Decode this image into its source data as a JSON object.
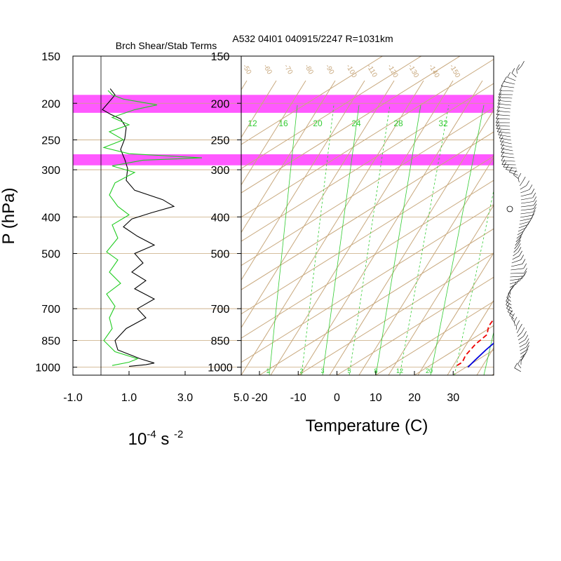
{
  "header": {
    "left_title": "Brch Shear/Stab Terms",
    "right_title": "A532 04I01 040915/2247 R=1031km"
  },
  "colors": {
    "isotherm": "#c8a87d",
    "mixing_ratio": "#33cc33",
    "highlight": "#ff00ff",
    "temperature": "#0000dd",
    "dewpoint": "#ee0000",
    "shear_term": "#000000",
    "stab_term": "#22cc22",
    "wind_barb": "#000000"
  },
  "chart_data": [
    {
      "type": "line",
      "name": "shear-stability-profile",
      "title": "Brch Shear/Stab Terms",
      "ylabel": "P (hPa)",
      "xlabel": "10^-4 s^-2",
      "xlabel_base": "10",
      "xlabel_exp1": "-4",
      "xlabel_mid": " s ",
      "xlabel_exp2": "-2",
      "x_ticks": [
        "-1.0",
        "1.0",
        "3.0",
        "5.0"
      ],
      "x_tick_values": [
        -1,
        1,
        3,
        5
      ],
      "xlim": [
        -1.0,
        5.0
      ],
      "y_scale": "log",
      "y_ticks": [
        "150",
        "200",
        "250",
        "300",
        "400",
        "500",
        "700",
        "850",
        "1000"
      ],
      "y_tick_values": [
        150,
        200,
        250,
        300,
        400,
        500,
        700,
        850,
        1000
      ],
      "ylim": [
        150,
        1050
      ],
      "highlight_bands": [
        [
          190,
          212
        ],
        [
          273,
          292
        ]
      ],
      "series": [
        {
          "color_key": "shear_term",
          "points": [
            [
              0.33,
              183
            ],
            [
              0.5,
              190
            ],
            [
              0.3,
              198
            ],
            [
              0.05,
              208
            ],
            [
              0.35,
              214
            ],
            [
              0.7,
              220
            ],
            [
              0.9,
              232
            ],
            [
              0.85,
              248
            ],
            [
              0.7,
              265
            ],
            [
              0.85,
              282
            ],
            [
              0.95,
              298
            ],
            [
              0.9,
              320
            ],
            [
              1.2,
              340
            ],
            [
              2.2,
              360
            ],
            [
              2.6,
              375
            ],
            [
              1.8,
              390
            ],
            [
              1.1,
              405
            ],
            [
              0.8,
              425
            ],
            [
              1.3,
              450
            ],
            [
              1.9,
              475
            ],
            [
              1.2,
              500
            ],
            [
              1.5,
              530
            ],
            [
              1.1,
              560
            ],
            [
              1.6,
              590
            ],
            [
              1.2,
              620
            ],
            [
              1.9,
              660
            ],
            [
              1.3,
              700
            ],
            [
              1.6,
              740
            ],
            [
              0.9,
              790
            ],
            [
              0.5,
              850
            ],
            [
              0.6,
              900
            ],
            [
              1.4,
              950
            ],
            [
              1.9,
              975
            ],
            [
              1.6,
              985
            ],
            [
              1.0,
              995
            ]
          ]
        },
        {
          "color_key": "stab_term",
          "points": [
            [
              0.25,
              185
            ],
            [
              0.4,
              190
            ],
            [
              0.8,
              195
            ],
            [
              2.0,
              202
            ],
            [
              1.2,
              208
            ],
            [
              0.4,
              218
            ],
            [
              1.0,
              228
            ],
            [
              0.3,
              238
            ],
            [
              0.8,
              250
            ],
            [
              0.1,
              262
            ],
            [
              1.0,
              272
            ],
            [
              3.6,
              279
            ],
            [
              1.5,
              283
            ],
            [
              0.4,
              293
            ],
            [
              1.2,
              305
            ],
            [
              0.5,
              325
            ],
            [
              0.3,
              350
            ],
            [
              0.6,
              375
            ],
            [
              1.0,
              395
            ],
            [
              0.4,
              420
            ],
            [
              0.6,
              455
            ],
            [
              0.2,
              495
            ],
            [
              0.6,
              520
            ],
            [
              0.3,
              560
            ],
            [
              0.7,
              600
            ],
            [
              0.2,
              640
            ],
            [
              0.5,
              690
            ],
            [
              0.3,
              740
            ],
            [
              0.4,
              790
            ],
            [
              0.1,
              850
            ],
            [
              0.5,
              910
            ],
            [
              1.3,
              950
            ],
            [
              1.0,
              970
            ],
            [
              0.4,
              990
            ]
          ]
        }
      ]
    },
    {
      "type": "line",
      "name": "skew-t-sounding",
      "title": "A532 04I01 040915/2247 R=1031km",
      "xlabel": "Temperature (C)",
      "ylabel": "",
      "x_ticks": [
        "-20",
        "-10",
        "0",
        "10",
        "20",
        "30"
      ],
      "x_tick_values": [
        -20,
        -10,
        0,
        10,
        20,
        30
      ],
      "y_scale": "log",
      "y_ticks": [
        "150",
        "200",
        "250",
        "300",
        "400",
        "500",
        "700",
        "850",
        "1000"
      ],
      "y_tick_values": [
        150,
        200,
        250,
        300,
        400,
        500,
        700,
        850,
        1000
      ],
      "ylim": [
        150,
        1050
      ],
      "isotherm_labels": [
        "-50",
        "-60",
        "-70",
        "-80",
        "-90",
        "-100",
        "-110",
        "-120",
        "-130",
        "-140",
        "-150"
      ],
      "isotherm_values": [
        50,
        60,
        70,
        80,
        90,
        100,
        110,
        120,
        130,
        140,
        150
      ],
      "mixing_ratio_labels_top": [
        "12",
        "16",
        "20",
        "24",
        "28",
        "32"
      ],
      "mixing_ratio_labels_bottom": [
        "1",
        "2",
        "3",
        "5",
        "8",
        "12",
        "20"
      ],
      "series": [
        {
          "name": "Temperature",
          "color_key": "temperature",
          "points": [
            [
              -1,
              180
            ],
            [
              0,
              188
            ],
            [
              1.5,
              198
            ],
            [
              3.5,
              212
            ],
            [
              5.5,
              230
            ],
            [
              8,
              260
            ],
            [
              11,
              295
            ],
            [
              12.5,
              330
            ],
            [
              13,
              360
            ],
            [
              15,
              400
            ],
            [
              17,
              440
            ],
            [
              18.5,
              470
            ],
            [
              20,
              530
            ],
            [
              22,
              600
            ],
            [
              24,
              680
            ],
            [
              25.5,
              760
            ],
            [
              26.5,
              830
            ],
            [
              28,
              900
            ],
            [
              29.5,
              960
            ],
            [
              30.5,
              1000
            ]
          ]
        },
        {
          "name": "Dewpoint",
          "color_key": "dewpoint",
          "points": [
            [
              -9,
              198
            ],
            [
              -7,
              215
            ],
            [
              -4,
              235
            ],
            [
              0,
              252
            ],
            [
              3,
              272
            ],
            [
              2,
              292
            ],
            [
              -2,
              310
            ],
            [
              2,
              330
            ],
            [
              6,
              350
            ],
            [
              9,
              370
            ],
            [
              7,
              385
            ],
            [
              4,
              405
            ],
            [
              7,
              425
            ],
            [
              8,
              445
            ],
            [
              5,
              465
            ],
            [
              7,
              490
            ],
            [
              11,
              510
            ],
            [
              13,
              545
            ],
            [
              14,
              580
            ],
            [
              15,
              620
            ],
            [
              15,
              660
            ],
            [
              14,
              700
            ],
            [
              17,
              740
            ],
            [
              19,
              780
            ],
            [
              22,
              820
            ],
            [
              23,
              870
            ],
            [
              25,
              930
            ],
            [
              27,
              970
            ],
            [
              27,
              1000
            ]
          ]
        }
      ]
    }
  ]
}
